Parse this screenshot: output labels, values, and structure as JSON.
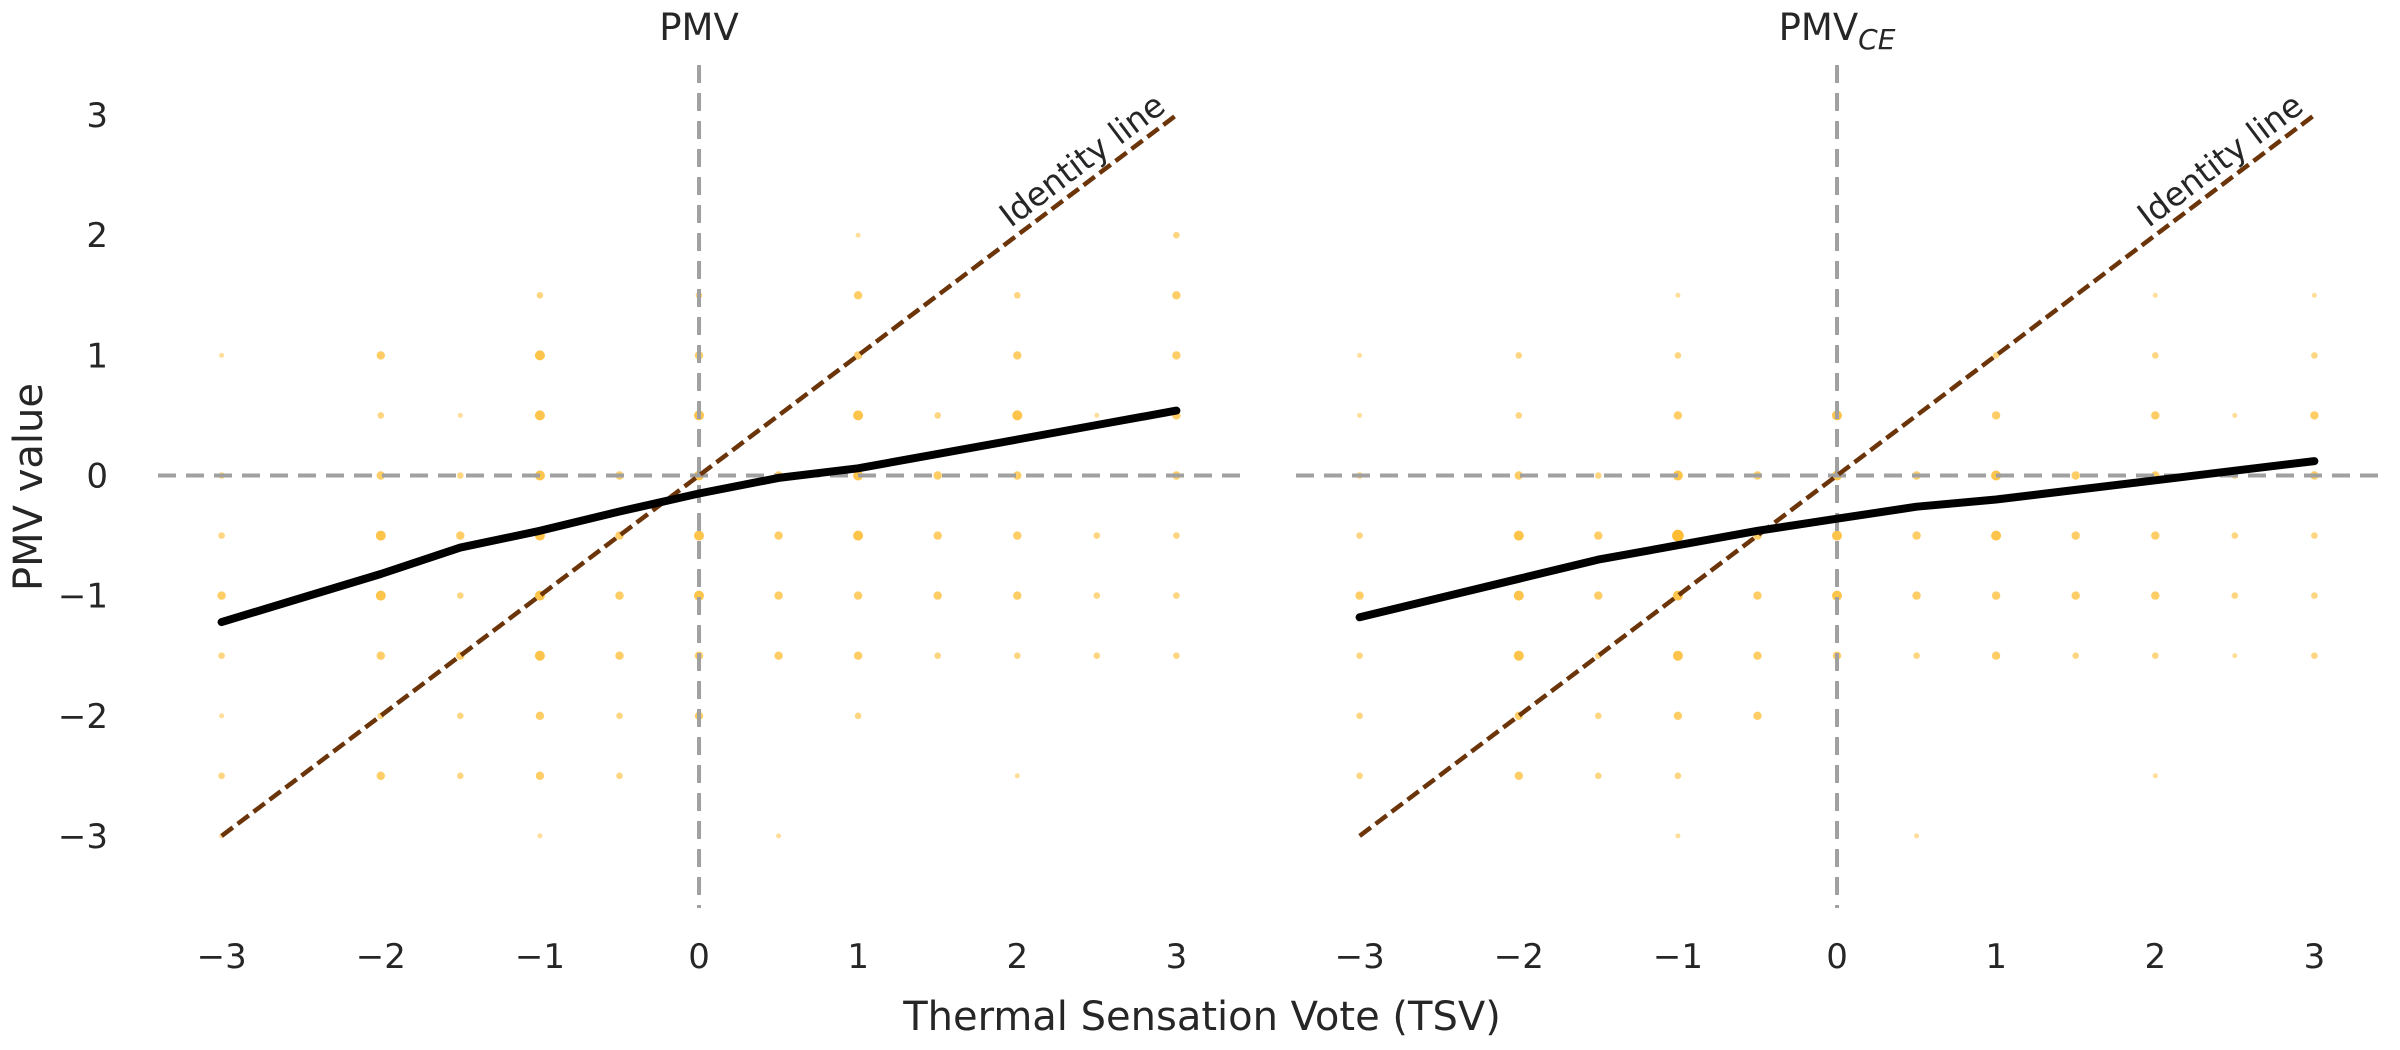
{
  "chart_data": {
    "type": "scatter",
    "xlabel": "Thermal Sensation Vote (TSV)",
    "ylabel": "PMV value",
    "colors": {
      "points": "#FDB827",
      "smooth_line": "#000000",
      "identity_line": "#6B3409",
      "reference_lines": "#A0A0A0"
    },
    "panels": [
      {
        "title": "PMV",
        "title_sub": "",
        "xlim": [
          -3.4,
          3.45
        ],
        "ylim": [
          -3.6,
          3.5
        ],
        "xticks": [
          "−3",
          "−2",
          "−1",
          "0",
          "1",
          "2",
          "3"
        ],
        "yticks": [
          "−3",
          "−2",
          "−1",
          "0",
          "1",
          "2",
          "3"
        ],
        "identity_label": "Identity line",
        "reference_lines": {
          "x": 0,
          "y": 0
        },
        "identity_line": {
          "x": [
            -3,
            3
          ],
          "y": [
            -3,
            3
          ]
        },
        "smooth_line": {
          "x": [
            -3,
            -2.5,
            -2,
            -1.5,
            -1,
            -0.5,
            0,
            0.5,
            1,
            1.5,
            2,
            2.5,
            3
          ],
          "y": [
            -1.22,
            -1.02,
            -0.82,
            -0.6,
            -0.46,
            -0.3,
            -0.15,
            -0.02,
            0.06,
            0.18,
            0.3,
            0.42,
            0.54
          ]
        },
        "points": [
          {
            "x": -3,
            "y": 1,
            "s": 1
          },
          {
            "x": -3,
            "y": 0,
            "s": 2
          },
          {
            "x": -3,
            "y": -0.5,
            "s": 2
          },
          {
            "x": -3,
            "y": -1,
            "s": 3
          },
          {
            "x": -3,
            "y": -1.5,
            "s": 2
          },
          {
            "x": -3,
            "y": -2,
            "s": 1
          },
          {
            "x": -3,
            "y": -2.5,
            "s": 2
          },
          {
            "x": -3,
            "y": -3,
            "s": 1
          },
          {
            "x": -2,
            "y": 1,
            "s": 3
          },
          {
            "x": -2,
            "y": 0.5,
            "s": 2
          },
          {
            "x": -2,
            "y": 0,
            "s": 3
          },
          {
            "x": -2,
            "y": -0.5,
            "s": 4
          },
          {
            "x": -2,
            "y": -1,
            "s": 4
          },
          {
            "x": -2,
            "y": -1.5,
            "s": 3
          },
          {
            "x": -2,
            "y": -2,
            "s": 2
          },
          {
            "x": -2,
            "y": -2.5,
            "s": 3
          },
          {
            "x": -1.5,
            "y": 0.5,
            "s": 1
          },
          {
            "x": -1.5,
            "y": 0,
            "s": 2
          },
          {
            "x": -1.5,
            "y": -0.5,
            "s": 3
          },
          {
            "x": -1.5,
            "y": -1,
            "s": 2
          },
          {
            "x": -1.5,
            "y": -1.5,
            "s": 3
          },
          {
            "x": -1.5,
            "y": -2,
            "s": 2
          },
          {
            "x": -1.5,
            "y": -2.5,
            "s": 2
          },
          {
            "x": -1,
            "y": 1.5,
            "s": 2
          },
          {
            "x": -1,
            "y": 1,
            "s": 4
          },
          {
            "x": -1,
            "y": 0.5,
            "s": 4
          },
          {
            "x": -1,
            "y": 0,
            "s": 4
          },
          {
            "x": -1,
            "y": -0.5,
            "s": 4
          },
          {
            "x": -1,
            "y": -1,
            "s": 4
          },
          {
            "x": -1,
            "y": -1.5,
            "s": 4
          },
          {
            "x": -1,
            "y": -2,
            "s": 3
          },
          {
            "x": -1,
            "y": -2.5,
            "s": 3
          },
          {
            "x": -1,
            "y": -3,
            "s": 1
          },
          {
            "x": -0.5,
            "y": 0,
            "s": 3
          },
          {
            "x": -0.5,
            "y": -0.5,
            "s": 3
          },
          {
            "x": -0.5,
            "y": -1,
            "s": 3
          },
          {
            "x": -0.5,
            "y": -1.5,
            "s": 3
          },
          {
            "x": -0.5,
            "y": -2,
            "s": 2
          },
          {
            "x": -0.5,
            "y": -2.5,
            "s": 2
          },
          {
            "x": 0,
            "y": 1.5,
            "s": 2
          },
          {
            "x": 0,
            "y": 1,
            "s": 3
          },
          {
            "x": 0,
            "y": 0.5,
            "s": 4
          },
          {
            "x": 0,
            "y": 0,
            "s": 4
          },
          {
            "x": 0,
            "y": -0.5,
            "s": 4
          },
          {
            "x": 0,
            "y": -1,
            "s": 4
          },
          {
            "x": 0,
            "y": -1.5,
            "s": 3
          },
          {
            "x": 0,
            "y": -2,
            "s": 3
          },
          {
            "x": 0.5,
            "y": 0,
            "s": 3
          },
          {
            "x": 0.5,
            "y": -0.5,
            "s": 3
          },
          {
            "x": 0.5,
            "y": -1,
            "s": 3
          },
          {
            "x": 0.5,
            "y": -1.5,
            "s": 3
          },
          {
            "x": 0.5,
            "y": -3,
            "s": 1
          },
          {
            "x": 1,
            "y": 2,
            "s": 1
          },
          {
            "x": 1,
            "y": 1.5,
            "s": 3
          },
          {
            "x": 1,
            "y": 1,
            "s": 3
          },
          {
            "x": 1,
            "y": 0.5,
            "s": 4
          },
          {
            "x": 1,
            "y": 0,
            "s": 4
          },
          {
            "x": 1,
            "y": -0.5,
            "s": 4
          },
          {
            "x": 1,
            "y": -1,
            "s": 3
          },
          {
            "x": 1,
            "y": -1.5,
            "s": 3
          },
          {
            "x": 1,
            "y": -2,
            "s": 2
          },
          {
            "x": 1.5,
            "y": 0.5,
            "s": 2
          },
          {
            "x": 1.5,
            "y": 0,
            "s": 3
          },
          {
            "x": 1.5,
            "y": -0.5,
            "s": 3
          },
          {
            "x": 1.5,
            "y": -1,
            "s": 3
          },
          {
            "x": 1.5,
            "y": -1.5,
            "s": 2
          },
          {
            "x": 2,
            "y": 1.5,
            "s": 2
          },
          {
            "x": 2,
            "y": 1,
            "s": 3
          },
          {
            "x": 2,
            "y": 0.5,
            "s": 4
          },
          {
            "x": 2,
            "y": 0,
            "s": 3
          },
          {
            "x": 2,
            "y": -0.5,
            "s": 3
          },
          {
            "x": 2,
            "y": -1,
            "s": 3
          },
          {
            "x": 2,
            "y": -1.5,
            "s": 2
          },
          {
            "x": 2,
            "y": -2.5,
            "s": 1
          },
          {
            "x": 2.5,
            "y": 0.5,
            "s": 1
          },
          {
            "x": 2.5,
            "y": -0.5,
            "s": 2
          },
          {
            "x": 2.5,
            "y": -1,
            "s": 2
          },
          {
            "x": 2.5,
            "y": -1.5,
            "s": 2
          },
          {
            "x": 3,
            "y": 2,
            "s": 2
          },
          {
            "x": 3,
            "y": 1.5,
            "s": 3
          },
          {
            "x": 3,
            "y": 1,
            "s": 3
          },
          {
            "x": 3,
            "y": 0.5,
            "s": 3
          },
          {
            "x": 3,
            "y": 0,
            "s": 3
          },
          {
            "x": 3,
            "y": -0.5,
            "s": 2
          },
          {
            "x": 3,
            "y": -1,
            "s": 2
          },
          {
            "x": 3,
            "y": -1.5,
            "s": 2
          }
        ]
      },
      {
        "title": "PMV",
        "title_sub": "CE",
        "xlim": [
          -3.4,
          3.45
        ],
        "ylim": [
          -3.6,
          3.5
        ],
        "xticks": [
          "−3",
          "−2",
          "−1",
          "0",
          "1",
          "2",
          "3"
        ],
        "yticks": [],
        "identity_label": "Identity line",
        "reference_lines": {
          "x": 0,
          "y": 0
        },
        "identity_line": {
          "x": [
            -3,
            3
          ],
          "y": [
            -3,
            3
          ]
        },
        "smooth_line": {
          "x": [
            -3,
            -2.5,
            -2,
            -1.5,
            -1,
            -0.5,
            0,
            0.5,
            1,
            1.5,
            2,
            2.5,
            3
          ],
          "y": [
            -1.18,
            -1.02,
            -0.86,
            -0.7,
            -0.58,
            -0.46,
            -0.36,
            -0.26,
            -0.2,
            -0.12,
            -0.04,
            0.04,
            0.12
          ]
        },
        "points": [
          {
            "x": -3,
            "y": 1,
            "s": 1
          },
          {
            "x": -3,
            "y": 0.5,
            "s": 1
          },
          {
            "x": -3,
            "y": 0,
            "s": 2
          },
          {
            "x": -3,
            "y": -0.5,
            "s": 2
          },
          {
            "x": -3,
            "y": -1,
            "s": 3
          },
          {
            "x": -3,
            "y": -1.5,
            "s": 2
          },
          {
            "x": -3,
            "y": -2,
            "s": 2
          },
          {
            "x": -3,
            "y": -2.5,
            "s": 2
          },
          {
            "x": -2,
            "y": 1,
            "s": 2
          },
          {
            "x": -2,
            "y": 0.5,
            "s": 2
          },
          {
            "x": -2,
            "y": 0,
            "s": 3
          },
          {
            "x": -2,
            "y": -0.5,
            "s": 4
          },
          {
            "x": -2,
            "y": -1,
            "s": 4
          },
          {
            "x": -2,
            "y": -1.5,
            "s": 4
          },
          {
            "x": -2,
            "y": -2,
            "s": 3
          },
          {
            "x": -2,
            "y": -2.5,
            "s": 3
          },
          {
            "x": -1.5,
            "y": 0,
            "s": 2
          },
          {
            "x": -1.5,
            "y": -0.5,
            "s": 3
          },
          {
            "x": -1.5,
            "y": -1,
            "s": 3
          },
          {
            "x": -1.5,
            "y": -1.5,
            "s": 2
          },
          {
            "x": -1.5,
            "y": -2,
            "s": 2
          },
          {
            "x": -1.5,
            "y": -2.5,
            "s": 2
          },
          {
            "x": -1,
            "y": 1.5,
            "s": 1
          },
          {
            "x": -1,
            "y": 1,
            "s": 2
          },
          {
            "x": -1,
            "y": 0.5,
            "s": 3
          },
          {
            "x": -1,
            "y": 0,
            "s": 4
          },
          {
            "x": -1,
            "y": -0.5,
            "s": 5
          },
          {
            "x": -1,
            "y": -1,
            "s": 4
          },
          {
            "x": -1,
            "y": -1.5,
            "s": 4
          },
          {
            "x": -1,
            "y": -2,
            "s": 3
          },
          {
            "x": -1,
            "y": -2.5,
            "s": 2
          },
          {
            "x": -1,
            "y": -3,
            "s": 1
          },
          {
            "x": -0.5,
            "y": 0,
            "s": 3
          },
          {
            "x": -0.5,
            "y": -0.5,
            "s": 3
          },
          {
            "x": -0.5,
            "y": -1,
            "s": 3
          },
          {
            "x": -0.5,
            "y": -1.5,
            "s": 3
          },
          {
            "x": -0.5,
            "y": -2,
            "s": 3
          },
          {
            "x": 0,
            "y": 0.5,
            "s": 4
          },
          {
            "x": 0,
            "y": 0,
            "s": 4
          },
          {
            "x": 0,
            "y": -0.5,
            "s": 4
          },
          {
            "x": 0,
            "y": -1,
            "s": 4
          },
          {
            "x": 0,
            "y": -1.5,
            "s": 3
          },
          {
            "x": 0.5,
            "y": 0,
            "s": 3
          },
          {
            "x": 0.5,
            "y": -0.5,
            "s": 3
          },
          {
            "x": 0.5,
            "y": -1,
            "s": 3
          },
          {
            "x": 0.5,
            "y": -1.5,
            "s": 2
          },
          {
            "x": 0.5,
            "y": -3,
            "s": 1
          },
          {
            "x": 1,
            "y": 1,
            "s": 2
          },
          {
            "x": 1,
            "y": 0.5,
            "s": 3
          },
          {
            "x": 1,
            "y": 0,
            "s": 4
          },
          {
            "x": 1,
            "y": -0.5,
            "s": 4
          },
          {
            "x": 1,
            "y": -1,
            "s": 3
          },
          {
            "x": 1,
            "y": -1.5,
            "s": 3
          },
          {
            "x": 1.5,
            "y": 0,
            "s": 3
          },
          {
            "x": 1.5,
            "y": -0.5,
            "s": 3
          },
          {
            "x": 1.5,
            "y": -1,
            "s": 3
          },
          {
            "x": 1.5,
            "y": -1.5,
            "s": 2
          },
          {
            "x": 2,
            "y": 1.5,
            "s": 1
          },
          {
            "x": 2,
            "y": 1,
            "s": 2
          },
          {
            "x": 2,
            "y": 0.5,
            "s": 3
          },
          {
            "x": 2,
            "y": 0,
            "s": 3
          },
          {
            "x": 2,
            "y": -0.5,
            "s": 3
          },
          {
            "x": 2,
            "y": -1,
            "s": 3
          },
          {
            "x": 2,
            "y": -1.5,
            "s": 2
          },
          {
            "x": 2,
            "y": -2.5,
            "s": 1
          },
          {
            "x": 2.5,
            "y": 0.5,
            "s": 1
          },
          {
            "x": 2.5,
            "y": 0,
            "s": 2
          },
          {
            "x": 2.5,
            "y": -0.5,
            "s": 2
          },
          {
            "x": 2.5,
            "y": -1,
            "s": 2
          },
          {
            "x": 2.5,
            "y": -1.5,
            "s": 1
          },
          {
            "x": 3,
            "y": 1.5,
            "s": 1
          },
          {
            "x": 3,
            "y": 1,
            "s": 2
          },
          {
            "x": 3,
            "y": 0.5,
            "s": 3
          },
          {
            "x": 3,
            "y": 0,
            "s": 3
          },
          {
            "x": 3,
            "y": -0.5,
            "s": 2
          },
          {
            "x": 3,
            "y": -1,
            "s": 2
          },
          {
            "x": 3,
            "y": -1.5,
            "s": 2
          }
        ]
      }
    ]
  }
}
